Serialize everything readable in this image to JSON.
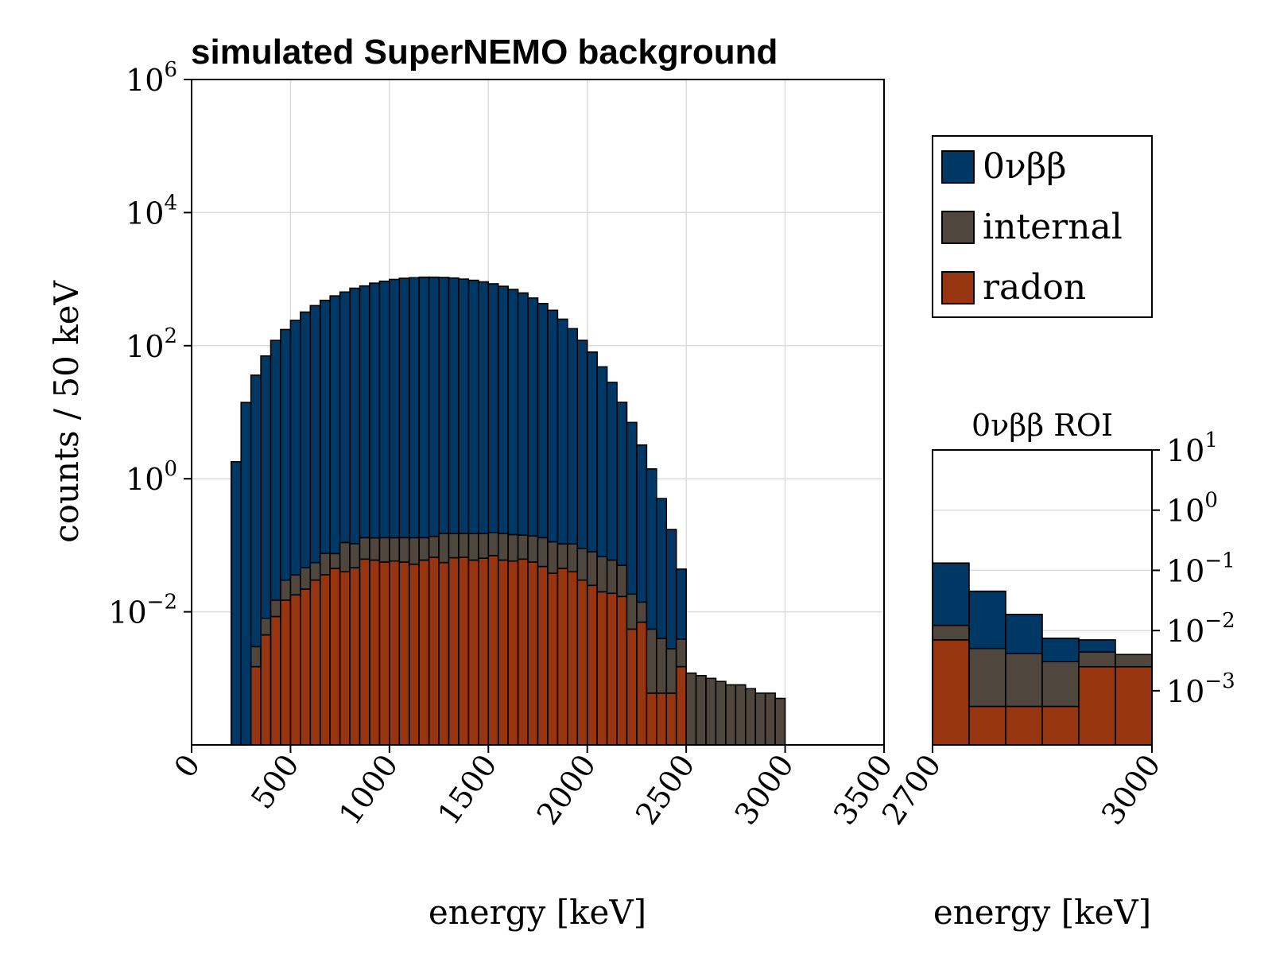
{
  "chart_data": [
    {
      "id": "main",
      "type": "bar",
      "stacked": true,
      "title": "simulated SuperNEMO background",
      "xlabel": "energy [keV]",
      "ylabel": "counts / 50 keV",
      "yscale": "log",
      "xlim": [
        0,
        3500
      ],
      "ylim_exp": [
        -4,
        6
      ],
      "bin_width_keV": 50,
      "x_ticks": [
        0,
        500,
        1000,
        1500,
        2000,
        2500,
        3000,
        3500
      ],
      "x_tick_labels": [
        "0",
        "500",
        "1000",
        "1500",
        "2000",
        "2500",
        "3000",
        "3500"
      ],
      "y_ticks_exp": [
        -2,
        0,
        2,
        4,
        6
      ],
      "y_tick_labels": [
        {
          "base": "10",
          "exp": "−2"
        },
        {
          "base": "10",
          "exp": "0"
        },
        {
          "base": "10",
          "exp": "2"
        },
        {
          "base": "10",
          "exp": "4"
        },
        {
          "base": "10",
          "exp": "6"
        }
      ],
      "grid": true,
      "bin_edges_start": 200,
      "series": [
        {
          "name": "radon",
          "color": "#983511",
          "values": [
            0,
            0,
            0.0015,
            0.0045,
            0.0085,
            0.015,
            0.018,
            0.022,
            0.03,
            0.036,
            0.045,
            0.04,
            0.046,
            0.062,
            0.06,
            0.056,
            0.058,
            0.056,
            0.052,
            0.06,
            0.066,
            0.055,
            0.065,
            0.066,
            0.06,
            0.064,
            0.07,
            0.06,
            0.058,
            0.062,
            0.056,
            0.048,
            0.038,
            0.045,
            0.04,
            0.03,
            0.025,
            0.02,
            0.019,
            0.017,
            0.0055,
            0.007,
            0.0006,
            0.0006,
            0.0006,
            0.0015,
            0,
            0,
            0,
            0,
            0,
            0,
            0,
            0,
            0,
            0
          ]
        },
        {
          "name": "internal",
          "color": "#4f473e",
          "values": [
            0,
            0,
            0.0015,
            0.0035,
            0.0065,
            0.015,
            0.018,
            0.024,
            0.025,
            0.04,
            0.03,
            0.07,
            0.06,
            0.068,
            0.069,
            0.074,
            0.072,
            0.074,
            0.078,
            0.07,
            0.07,
            0.095,
            0.085,
            0.084,
            0.09,
            0.086,
            0.086,
            0.09,
            0.087,
            0.08,
            0.082,
            0.082,
            0.075,
            0.06,
            0.065,
            0.06,
            0.055,
            0.048,
            0.041,
            0.033,
            0.013,
            0.007,
            0.0049,
            0.0034,
            0.0022,
            0.0024,
            0.0012,
            0.0011,
            0.001,
            0.0009,
            0.0008,
            0.0008,
            0.0007,
            0.0006,
            0.0006,
            0.0005
          ]
        },
        {
          "name": "0νββ",
          "color": "#003865",
          "values": [
            1.8,
            14,
            36,
            70,
            120,
            175,
            240,
            320,
            400,
            480,
            560,
            640,
            730,
            790,
            870,
            930,
            990,
            1030,
            1050,
            1070,
            1070,
            1060,
            1040,
            1000,
            960,
            910,
            850,
            780,
            700,
            620,
            520,
            430,
            340,
            250,
            180,
            120,
            80,
            48,
            28,
            14,
            7,
            3.2,
            1.4,
            0.5,
            0.17,
            0.04,
            0,
            0,
            0,
            0,
            0,
            0,
            0,
            0,
            0,
            0
          ]
        }
      ],
      "legend": {
        "position": "right",
        "entries": [
          {
            "label": "0νββ",
            "color": "#003865"
          },
          {
            "label": "internal",
            "color": "#4f473e"
          },
          {
            "label": "radon",
            "color": "#983511"
          }
        ]
      }
    },
    {
      "id": "roi",
      "type": "bar",
      "stacked": true,
      "title": "0νββ ROI",
      "xlabel": "energy [keV]",
      "yscale": "log",
      "xlim": [
        2700,
        3000
      ],
      "ylim_exp": [
        -3.9,
        1
      ],
      "bin_width_keV": 50,
      "bin_edges_start": 2700,
      "x_ticks": [
        2700,
        3000
      ],
      "x_tick_labels": [
        "2700",
        "3000"
      ],
      "y_ticks_exp": [
        -3,
        -2,
        -1,
        0,
        1
      ],
      "y_tick_labels": [
        {
          "base": "10",
          "exp": "−3"
        },
        {
          "base": "10",
          "exp": "−2"
        },
        {
          "base": "10",
          "exp": "−1"
        },
        {
          "base": "10",
          "exp": "0"
        },
        {
          "base": "10",
          "exp": "1"
        }
      ],
      "grid": true,
      "series": [
        {
          "name": "radon",
          "color": "#983511",
          "values": [
            0.007,
            0.00055,
            0.00055,
            0.00055,
            0.0025,
            0.0025
          ]
        },
        {
          "name": "internal",
          "color": "#4f473e",
          "values": [
            0.0052,
            0.0045,
            0.0036,
            0.0025,
            0.0019,
            0.0015
          ]
        },
        {
          "name": "0νββ",
          "color": "#003865",
          "values": [
            0.12,
            0.04,
            0.0144,
            0.0044,
            0.0026,
            0
          ]
        }
      ]
    }
  ]
}
